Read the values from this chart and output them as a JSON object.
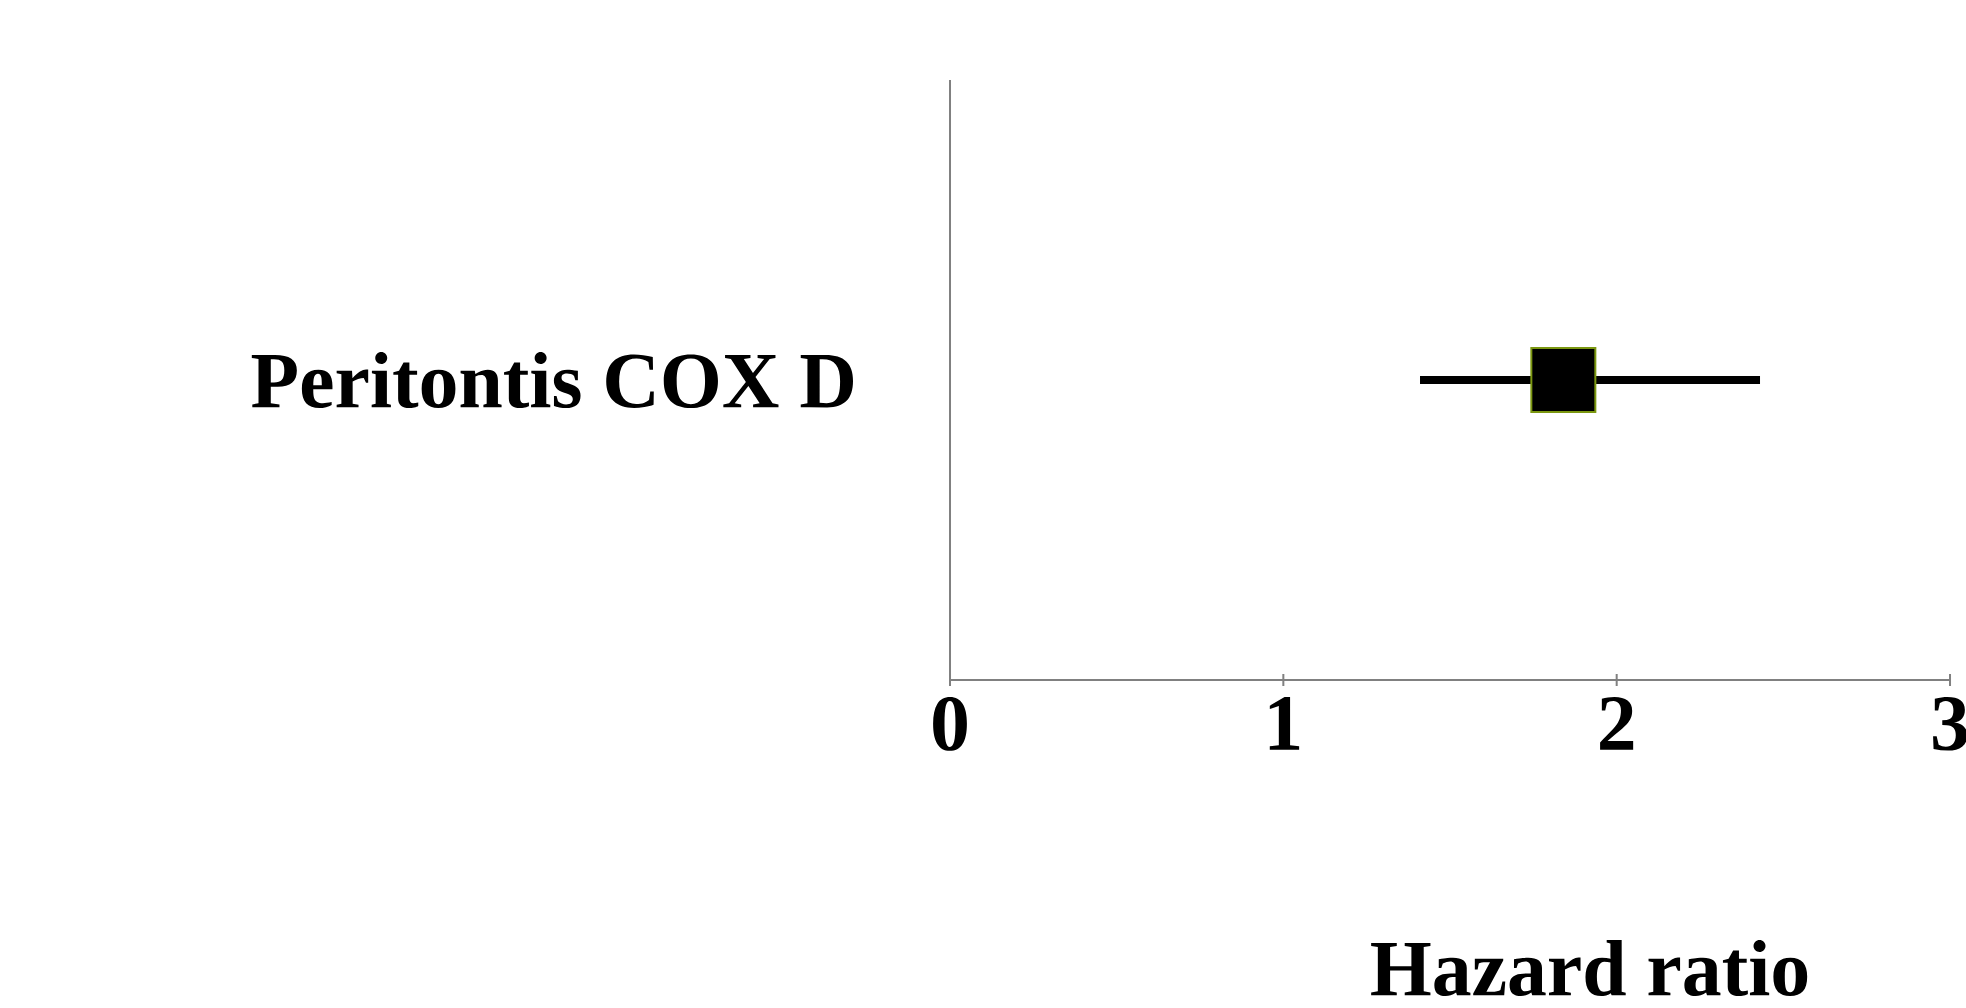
{
  "chart_data": {
    "type": "scatter",
    "orientation": "horizontal",
    "categories": [
      "Peritontis COX D"
    ],
    "values": [
      1.84
    ],
    "errors": [
      [
        1.41,
        2.43
      ]
    ],
    "color": "#000000",
    "marker": "square",
    "xlim": [
      0,
      3
    ],
    "xticks": [
      0,
      1,
      2,
      3
    ],
    "xlabel": "Hazard ratio"
  }
}
